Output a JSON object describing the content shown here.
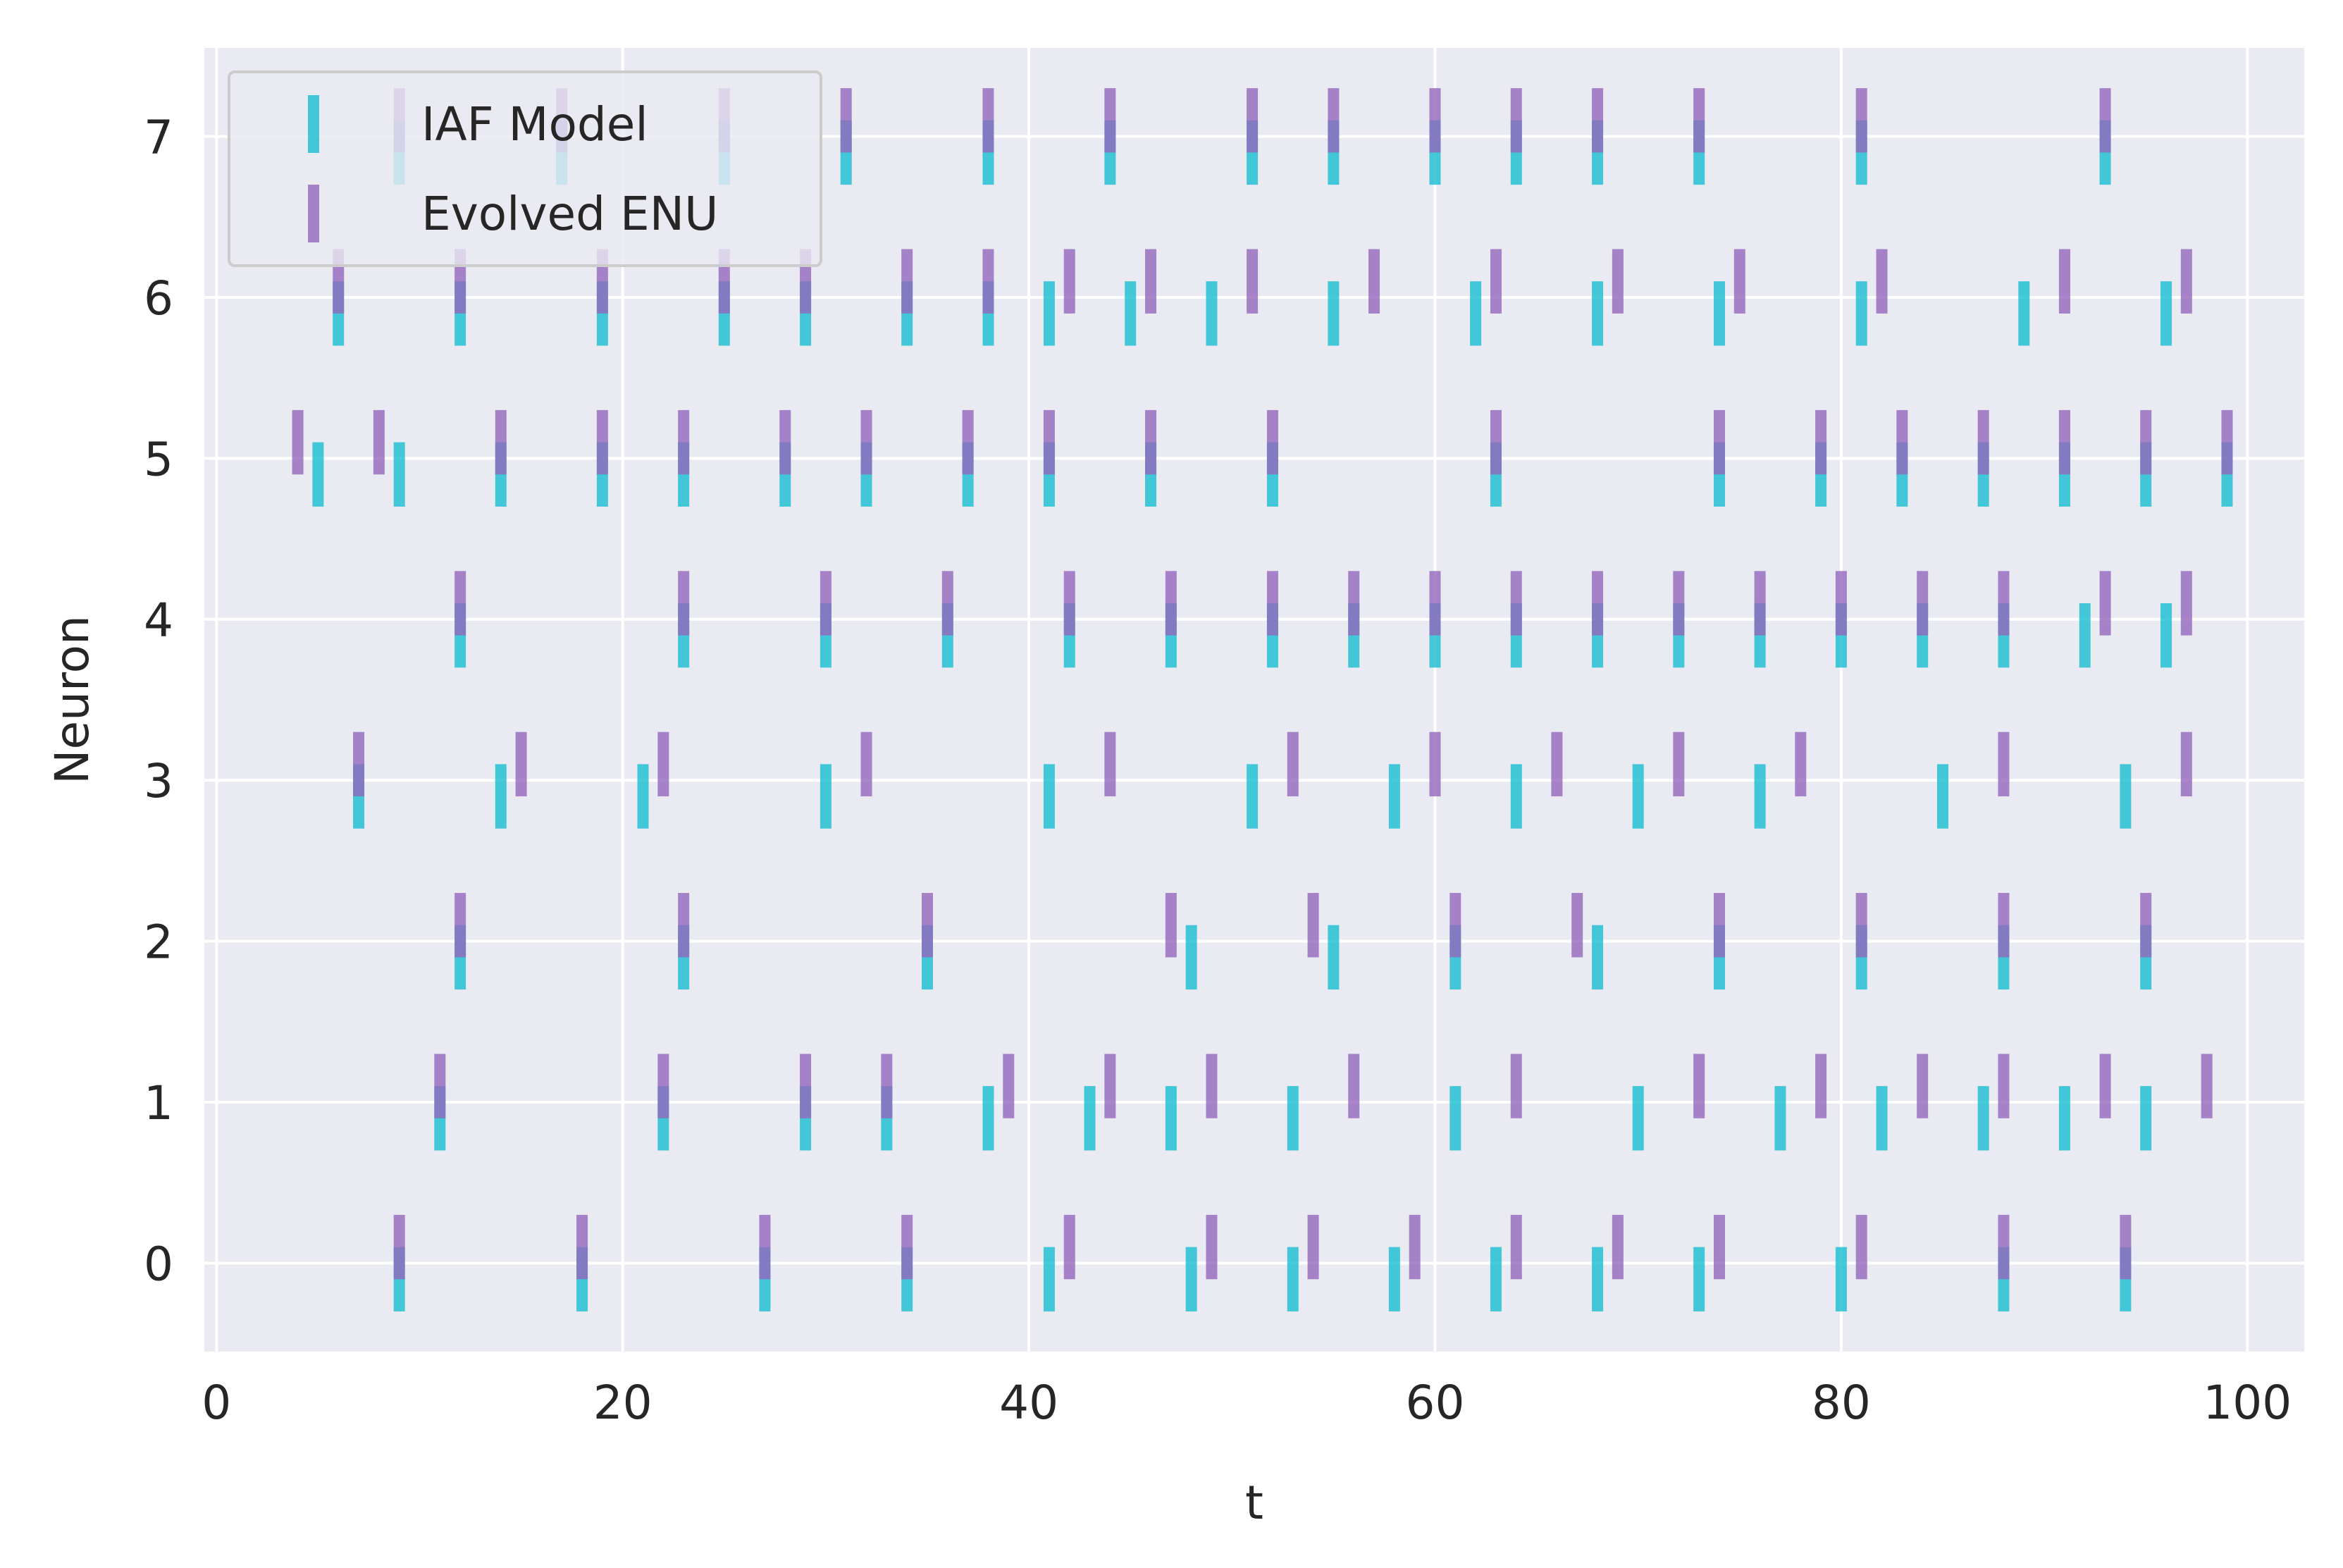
{
  "chart_data": {
    "type": "eventplot",
    "title": "",
    "xlabel": "t",
    "ylabel": "Neuron",
    "xlim": [
      -0.6,
      102.8
    ],
    "ylim": [
      -0.55,
      7.55
    ],
    "xticks": [
      0,
      20,
      40,
      60,
      80,
      100
    ],
    "yticks": [
      0,
      1,
      2,
      3,
      4,
      5,
      6,
      7
    ],
    "grid": true,
    "legend_position": "upper-left",
    "background_color": "#eaeaf2",
    "series": [
      {
        "name": "IAF Model",
        "color": "#17becf",
        "offset": -0.1,
        "spikes": [
          [
            9,
            18,
            27,
            34,
            41,
            48,
            53,
            58,
            63,
            68,
            73,
            80,
            88,
            94
          ],
          [
            11,
            22,
            29,
            33,
            38,
            43,
            47,
            53,
            61,
            70,
            77,
            82,
            87,
            91,
            95
          ],
          [
            12,
            23,
            35,
            48,
            55,
            61,
            68,
            74,
            81,
            88,
            95
          ],
          [
            7,
            14,
            21,
            30,
            41,
            51,
            58,
            64,
            70,
            76,
            85,
            94
          ],
          [
            12,
            23,
            30,
            36,
            42,
            47,
            52,
            56,
            60,
            64,
            68,
            72,
            76,
            80,
            84,
            88,
            92,
            96
          ],
          [
            5,
            9,
            14,
            19,
            23,
            28,
            32,
            37,
            41,
            46,
            52,
            63,
            74,
            79,
            83,
            87,
            91,
            95,
            99
          ],
          [
            6,
            12,
            19,
            25,
            29,
            34,
            38,
            41,
            45,
            49,
            55,
            62,
            68,
            74,
            81,
            89,
            96
          ],
          [
            9,
            17,
            25,
            31,
            38,
            44,
            51,
            55,
            60,
            64,
            68,
            73,
            81,
            93
          ]
        ]
      },
      {
        "name": "Evolved ENU",
        "color": "#9467bd",
        "offset": 0.1,
        "spikes": [
          [
            9,
            18,
            27,
            34,
            42,
            49,
            54,
            59,
            64,
            69,
            74,
            81,
            88,
            94
          ],
          [
            11,
            22,
            29,
            33,
            39,
            44,
            49,
            56,
            64,
            73,
            79,
            84,
            88,
            93,
            98
          ],
          [
            12,
            23,
            35,
            47,
            54,
            61,
            67,
            74,
            81,
            88,
            95
          ],
          [
            7,
            15,
            22,
            32,
            44,
            53,
            60,
            66,
            72,
            78,
            88,
            97
          ],
          [
            12,
            23,
            30,
            36,
            42,
            47,
            52,
            56,
            60,
            64,
            68,
            72,
            76,
            80,
            84,
            88,
            93,
            97
          ],
          [
            4,
            8,
            14,
            19,
            23,
            28,
            32,
            37,
            41,
            46,
            52,
            63,
            74,
            79,
            83,
            87,
            91,
            95,
            99
          ],
          [
            6,
            12,
            19,
            25,
            29,
            34,
            38,
            42,
            46,
            51,
            57,
            63,
            69,
            75,
            82,
            91,
            97
          ],
          [
            9,
            17,
            25,
            31,
            38,
            44,
            51,
            55,
            60,
            64,
            68,
            73,
            81,
            93
          ]
        ]
      }
    ]
  }
}
